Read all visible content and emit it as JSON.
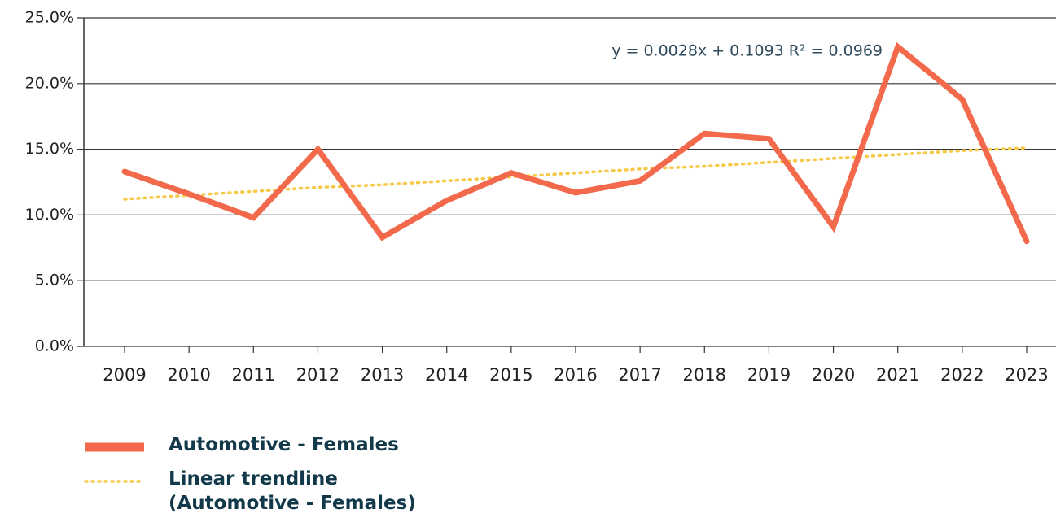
{
  "chart_data": {
    "type": "line",
    "categories": [
      "2009",
      "2010",
      "2011",
      "2012",
      "2013",
      "2014",
      "2015",
      "2016",
      "2017",
      "2018",
      "2019",
      "2020",
      "2021",
      "2022",
      "2023"
    ],
    "series": [
      {
        "name": "Automotive - Females",
        "color": "#f26a4b",
        "style": "solid",
        "values": [
          13.3,
          11.6,
          9.8,
          15.0,
          8.3,
          11.1,
          13.2,
          11.7,
          12.6,
          16.2,
          15.8,
          9.1,
          22.8,
          18.8,
          8.0
        ]
      },
      {
        "name": "Linear trendline (Automotive - Females)",
        "color": "#f7c948",
        "style": "dotted",
        "values": [
          11.2,
          11.5,
          11.8,
          12.1,
          12.3,
          12.6,
          12.9,
          13.2,
          13.5,
          13.7,
          14.0,
          14.3,
          14.6,
          14.9,
          15.1
        ]
      }
    ],
    "annotation": "y = 0.0028x + 0.1093 R² = 0.0969",
    "ylim": [
      0,
      25
    ],
    "yticks": [
      {
        "value": 0,
        "label": "0.0%"
      },
      {
        "value": 5,
        "label": "5.0%"
      },
      {
        "value": 10,
        "label": "10.0%"
      },
      {
        "value": 15,
        "label": "15.0%"
      },
      {
        "value": 20,
        "label": "20.0%"
      },
      {
        "value": 25,
        "label": "25.0%"
      }
    ],
    "grid": true
  }
}
